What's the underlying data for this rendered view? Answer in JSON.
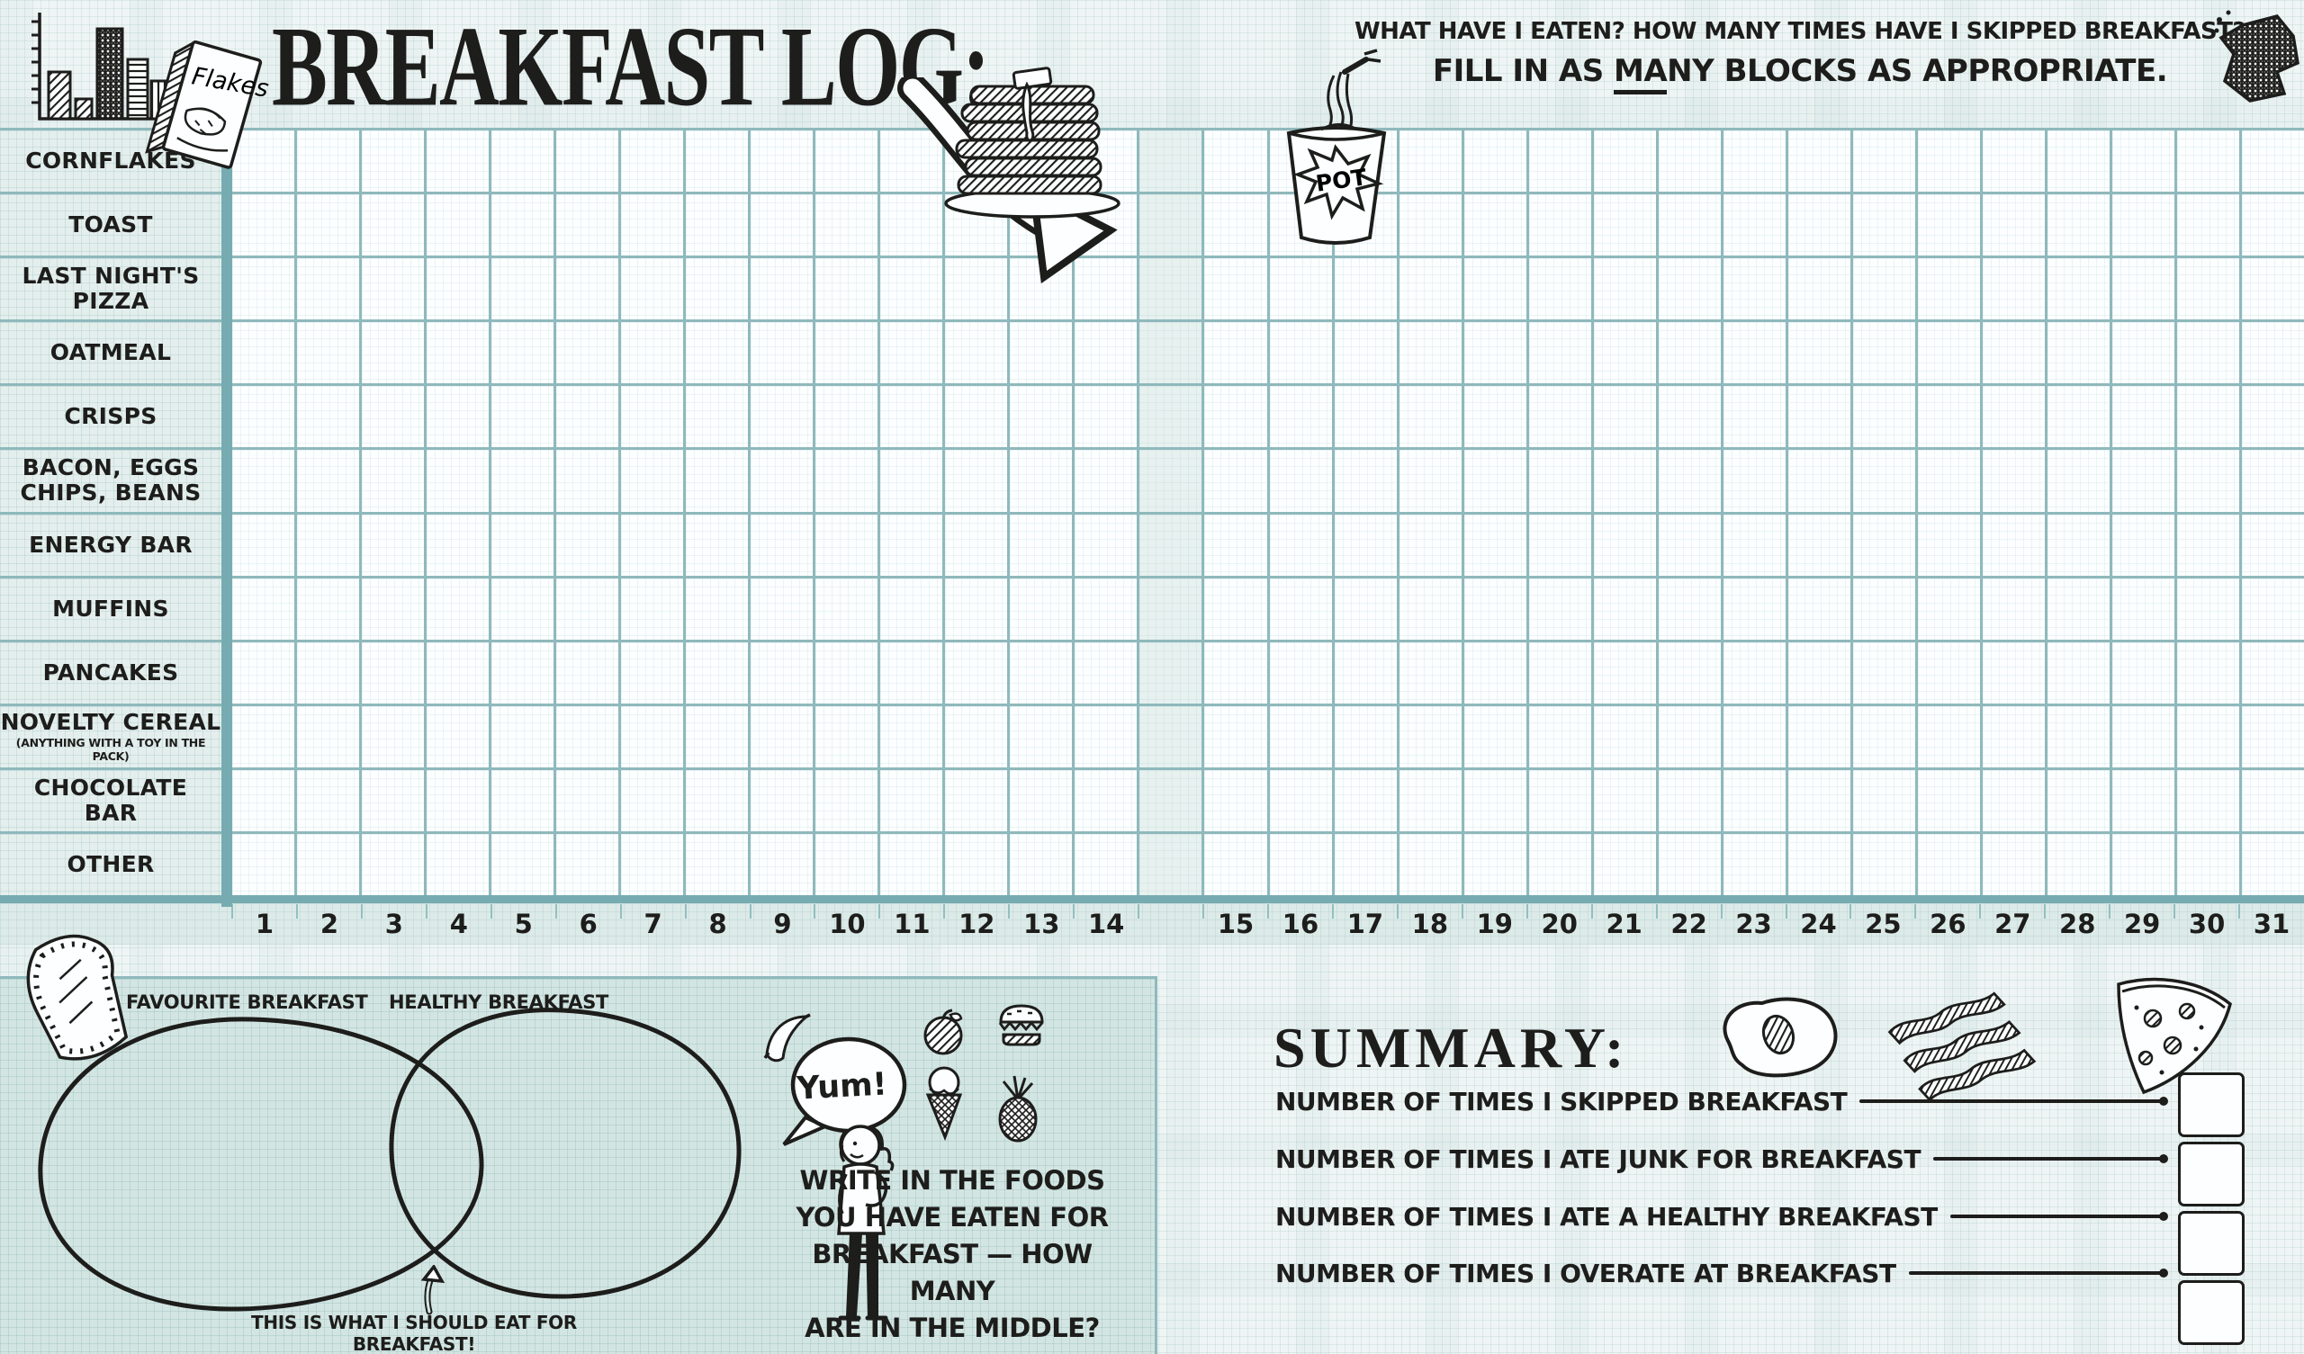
{
  "page": {
    "title": "BREAKFAST LOG:",
    "instructions_line1": "WHAT HAVE I EATEN? HOW MANY TIMES HAVE I SKIPPED BREAKFAST?",
    "instructions_line2_prefix": "FILL IN AS ",
    "instructions_line2_underlined": "MA",
    "instructions_line2_suffix": "NY BLOCKS AS APPROPRIATE."
  },
  "log_grid": {
    "rows": [
      {
        "lines": [
          "CORNFLAKES"
        ]
      },
      {
        "lines": [
          "TOAST"
        ]
      },
      {
        "lines": [
          "LAST NIGHT'S",
          "PIZZA"
        ]
      },
      {
        "lines": [
          "OATMEAL"
        ]
      },
      {
        "lines": [
          "CRISPS"
        ]
      },
      {
        "lines": [
          "BACON, EGGS",
          "CHIPS, BEANS"
        ]
      },
      {
        "lines": [
          "ENERGY BAR"
        ]
      },
      {
        "lines": [
          "MUFFINS"
        ]
      },
      {
        "lines": [
          "PANCAKES"
        ]
      },
      {
        "lines": [
          "NOVELTY CEREAL"
        ],
        "sub": "(ANYTHING WITH A TOY IN THE PACK)"
      },
      {
        "lines": [
          "CHOCOLATE",
          "BAR"
        ]
      },
      {
        "lines": [
          "OTHER"
        ]
      }
    ],
    "day_numbers_left": [
      1,
      2,
      3,
      4,
      5,
      6,
      7,
      8,
      9,
      10,
      11,
      12,
      13,
      14
    ],
    "day_numbers_right": [
      15,
      16,
      17,
      18,
      19,
      20,
      21,
      22,
      23,
      24,
      25,
      26,
      27,
      28,
      29,
      30,
      31
    ]
  },
  "venn": {
    "left_label": "FAVOURITE BREAKFAST",
    "right_label": "HEALTHY BREAKFAST",
    "caption": "THIS IS WHAT I SHOULD EAT FOR BREAKFAST!"
  },
  "mascot": {
    "speech": "Yum!",
    "prompt_lines": [
      "WRITE IN THE FOODS",
      "YOU HAVE EATEN FOR",
      "BREAKFAST — HOW MANY",
      "ARE IN THE MIDDLE?"
    ]
  },
  "summary": {
    "title": "SUMMARY:",
    "items": [
      "NUMBER OF TIMES I SKIPPED BREAKFAST",
      "NUMBER OF TIMES I ATE JUNK FOR BREAKFAST",
      "NUMBER OF TIMES I ATE A HEALTHY BREAKFAST",
      "NUMBER OF TIMES I OVERATE AT BREAKFAST"
    ]
  },
  "doodles": {
    "cereal_box_text": "Flakes",
    "pot_text": "POT",
    "icon_names": [
      "bar-chart-icon",
      "cereal-box-icon",
      "pancakes-icon",
      "curved-arrow-icon",
      "pot-noodle-icon",
      "snack-wrapper-icon",
      "toast-icon",
      "venn-circles",
      "up-arrow-icon",
      "person-figure",
      "speech-bubble",
      "banana-icon",
      "apple-icon",
      "burger-icon",
      "ice-cream-icon",
      "pineapple-icon",
      "fried-egg-icon",
      "bacon-icon",
      "pizza-slice-icon"
    ]
  },
  "colors": {
    "ink": "#1d1d1b",
    "teal_line": "#8fb9bc",
    "teal_bar": "#76acb1",
    "label_bg": "#e4efed",
    "cell_bg": "#fcfeff",
    "strip_bg": "#dceae8",
    "panel_bg": "#d3e5e2",
    "page_bg": "#f2f7f6"
  }
}
